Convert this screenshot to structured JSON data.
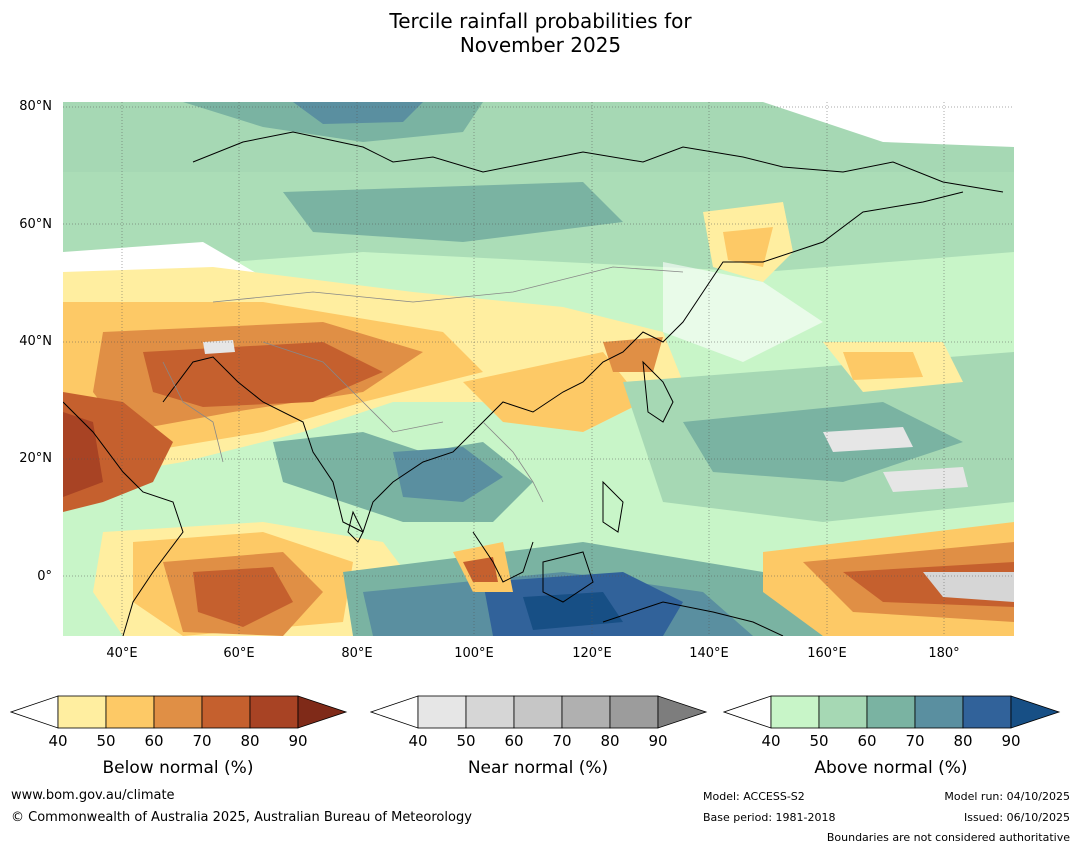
{
  "title": {
    "line1": "Tercile rainfall probabilities for",
    "line2": "November 2025"
  },
  "map": {
    "lat_labels": [
      "80°N",
      "60°N",
      "40°N",
      "20°N",
      "0°"
    ],
    "lon_labels": [
      "40°E",
      "60°E",
      "80°E",
      "100°E",
      "120°E",
      "140°E",
      "160°E",
      "180°"
    ]
  },
  "colorbars": [
    {
      "label": "Below normal (%)",
      "ticks": [
        "40",
        "50",
        "60",
        "70",
        "80",
        "90"
      ],
      "colors": [
        "#ffffff",
        "#ffeea0",
        "#fdc966",
        "#e08f45",
        "#c5602e",
        "#a84324",
        "#7f2a18"
      ]
    },
    {
      "label": "Near normal (%)",
      "ticks": [
        "40",
        "50",
        "60",
        "70",
        "80",
        "90"
      ],
      "colors": [
        "#ffffff",
        "#e6e6e6",
        "#d6d6d6",
        "#c6c6c6",
        "#b0b0b0",
        "#9c9c9c",
        "#7d7d7d"
      ]
    },
    {
      "label": "Above normal (%)",
      "ticks": [
        "40",
        "50",
        "60",
        "70",
        "80",
        "90"
      ],
      "colors": [
        "#ffffff",
        "#c8f5c8",
        "#a6d8b4",
        "#7ab3a2",
        "#5a8fa0",
        "#31629a",
        "#174f85"
      ]
    }
  ],
  "footer": {
    "website": "www.bom.gov.au/climate",
    "copyright": "© Commonwealth of Australia 2025, Australian Bureau of Meteorology",
    "model": "Model: ACCESS-S2",
    "base_period": "Base period: 1981-2018",
    "model_run": "Model run: 04/10/2025",
    "issued": "Issued: 06/10/2025",
    "disclaimer": "Boundaries are not considered authoritative"
  }
}
